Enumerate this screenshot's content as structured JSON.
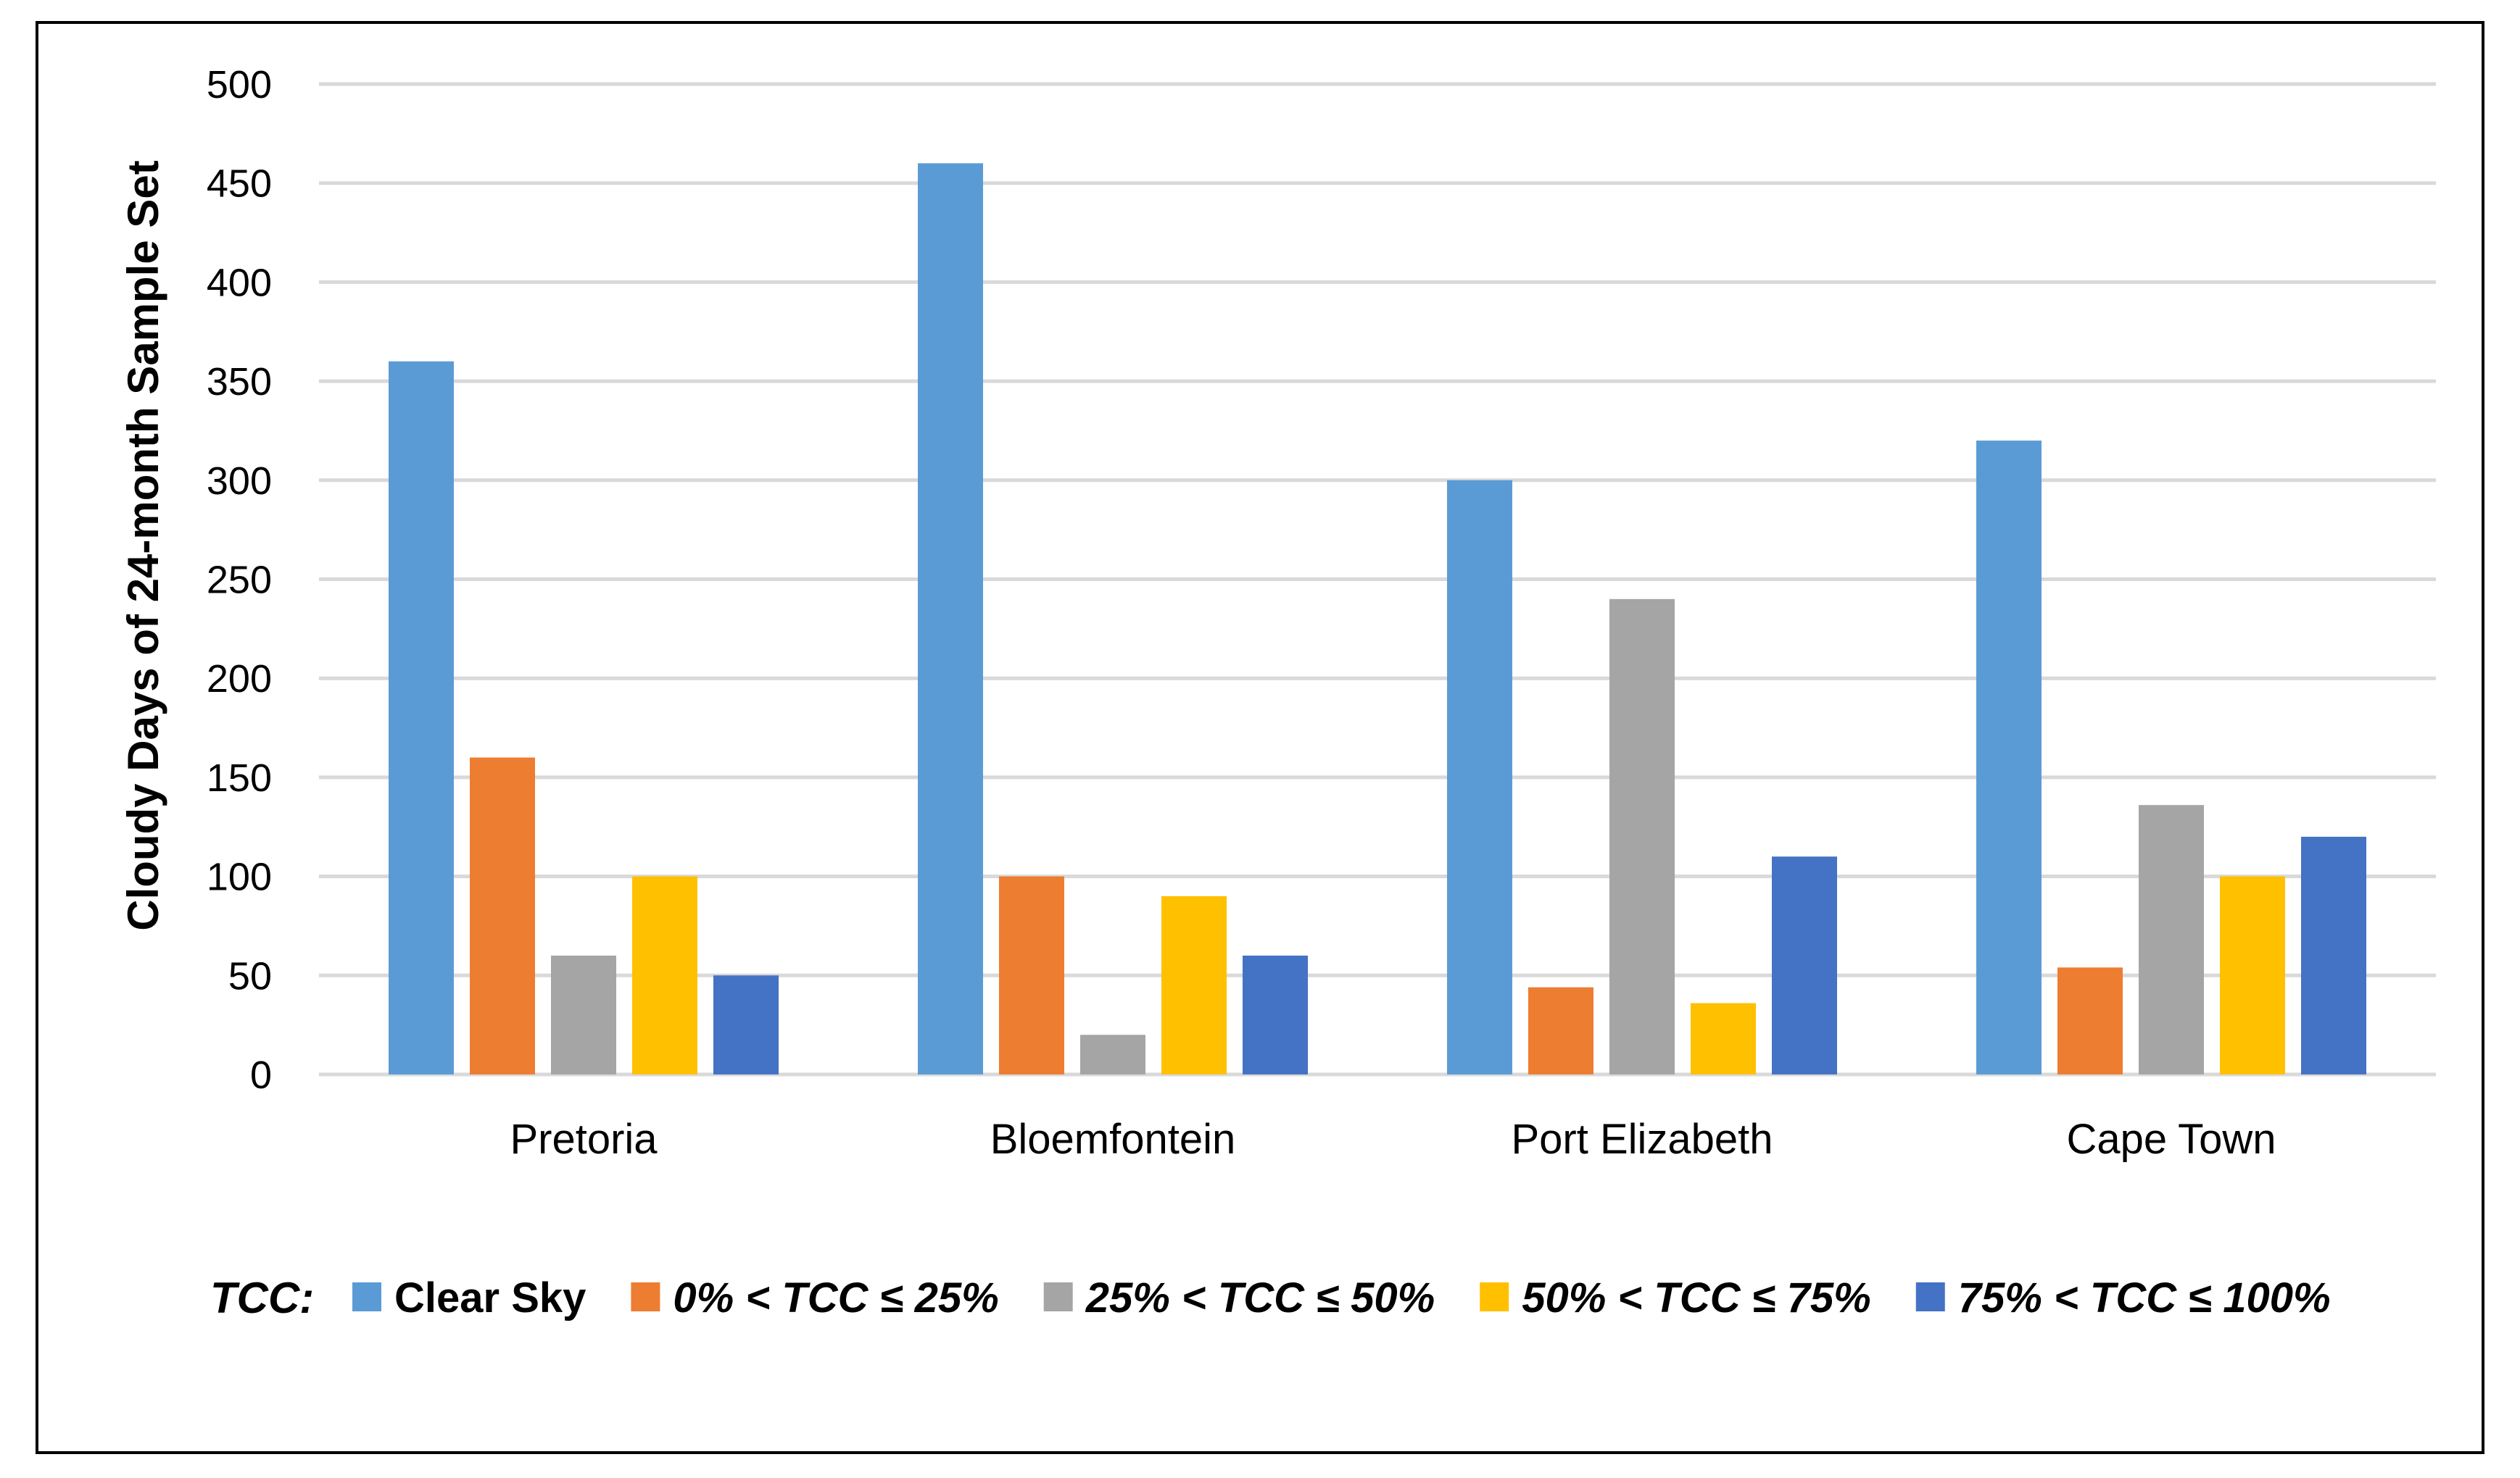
{
  "chart_data": {
    "type": "bar",
    "categories": [
      "Pretoria",
      "Bloemfontein",
      "Port Elizabeth",
      "Cape Town"
    ],
    "series": [
      {
        "name": "Clear Sky",
        "color": "#5B9BD5",
        "italic": false,
        "values": [
          360,
          460,
          300,
          320
        ]
      },
      {
        "name": "0% < TCC ≤ 25%",
        "color": "#ED7D31",
        "italic": true,
        "values": [
          160,
          100,
          44,
          54
        ]
      },
      {
        "name": "25% < TCC ≤ 50%",
        "color": "#A5A5A5",
        "italic": true,
        "values": [
          60,
          20,
          240,
          136
        ]
      },
      {
        "name": "50% < TCC ≤ 75%",
        "color": "#FFC000",
        "italic": true,
        "values": [
          100,
          90,
          36,
          100
        ]
      },
      {
        "name": "75% < TCC ≤ 100%",
        "color": "#4472C4",
        "italic": true,
        "values": [
          50,
          60,
          110,
          120
        ]
      }
    ],
    "ylabel": "Cloudy Days of 24-month Sample Set",
    "xlabel": "",
    "ylim": [
      0,
      500
    ],
    "yticks": [
      0,
      50,
      100,
      150,
      200,
      250,
      300,
      350,
      400,
      450,
      500
    ],
    "grid": true,
    "legend_prefix": "TCC:",
    "legend_position": "bottom"
  }
}
